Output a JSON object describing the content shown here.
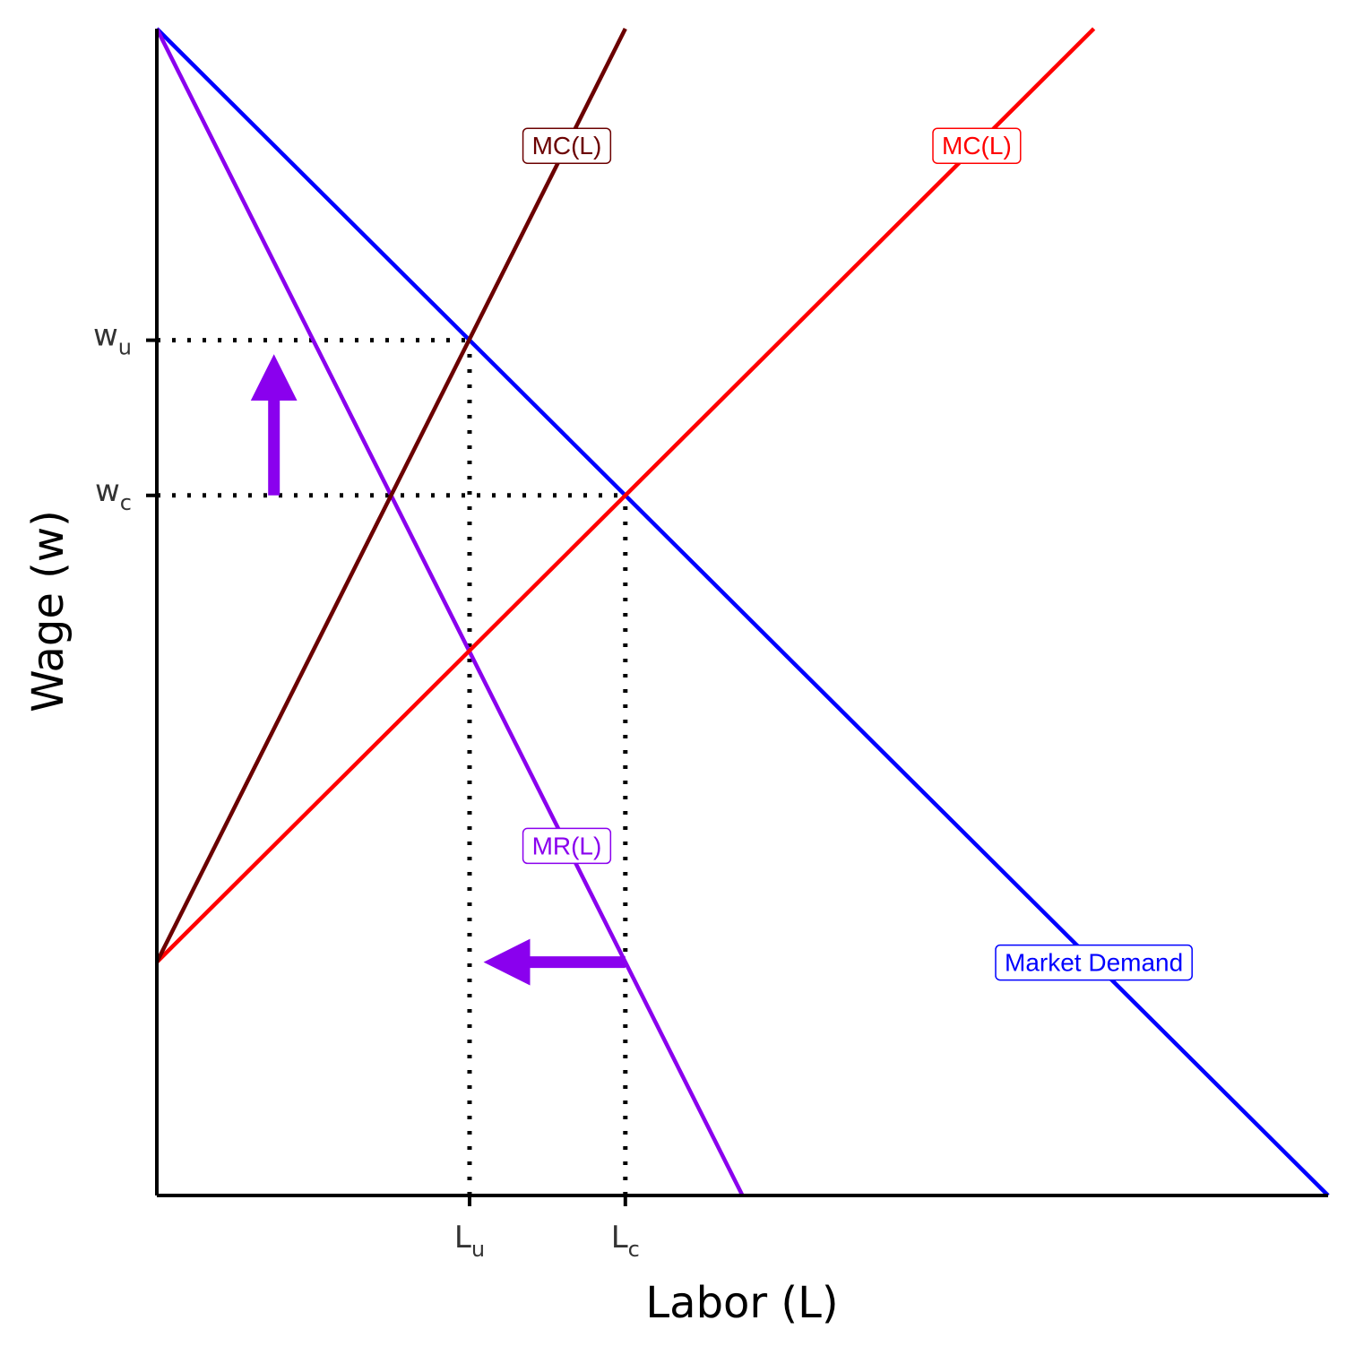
{
  "chart_data": {
    "type": "line",
    "title": "",
    "xlabel": "Labor (L)",
    "ylabel": "Wage (w)",
    "xlim": [
      0,
      10
    ],
    "ylim": [
      0,
      10
    ],
    "grid": false,
    "x_ticks": [
      {
        "base": "L",
        "sub": "u",
        "value": 2.67
      },
      {
        "base": "L",
        "sub": "c",
        "value": 4.0
      }
    ],
    "y_ticks": [
      {
        "base": "w",
        "sub": "u",
        "value": 7.33
      },
      {
        "base": "w",
        "sub": "c",
        "value": 6.0
      }
    ],
    "series": [
      {
        "key": "demand",
        "name": "Market Demand",
        "color": "#0000FF",
        "points": [
          [
            0,
            10
          ],
          [
            10,
            0
          ]
        ]
      },
      {
        "key": "mr",
        "name": "MR(L)",
        "color": "#8A00EE",
        "points": [
          [
            0,
            10
          ],
          [
            5,
            0
          ]
        ]
      },
      {
        "key": "supply",
        "name": "MC(L)",
        "color": "#FF0000",
        "points": [
          [
            0,
            2
          ],
          [
            8,
            10
          ]
        ]
      },
      {
        "key": "mc",
        "name": "MC(L)",
        "color": "#6B0000",
        "points": [
          [
            0,
            2
          ],
          [
            4,
            10
          ]
        ]
      }
    ],
    "labels": [
      {
        "series": "mc",
        "text": "MC(L)",
        "x": 3.5,
        "y": 9.0
      },
      {
        "series": "supply",
        "text": "MC(L)",
        "x": 7.0,
        "y": 9.0
      },
      {
        "series": "mr",
        "text": "MR(L)",
        "x": 3.5,
        "y": 3.0
      },
      {
        "series": "demand",
        "text": "Market Demand",
        "x": 8.0,
        "y": 2.0
      }
    ],
    "reference_lines": [
      {
        "type": "horizontal",
        "y": 7.33,
        "x_end": 2.67
      },
      {
        "type": "horizontal",
        "y": 6.0,
        "x_end": 4.0
      },
      {
        "type": "vertical",
        "x": 2.67,
        "y_end": 7.33
      },
      {
        "type": "vertical",
        "x": 4.0,
        "y_end": 6.0
      }
    ],
    "arrows": [
      {
        "from": [
          1.0,
          6.0
        ],
        "to": [
          1.0,
          7.33
        ],
        "color": "#8A00EE"
      },
      {
        "from": [
          4.0,
          2.0
        ],
        "to": [
          2.67,
          2.0
        ],
        "color": "#8A00EE"
      }
    ]
  }
}
